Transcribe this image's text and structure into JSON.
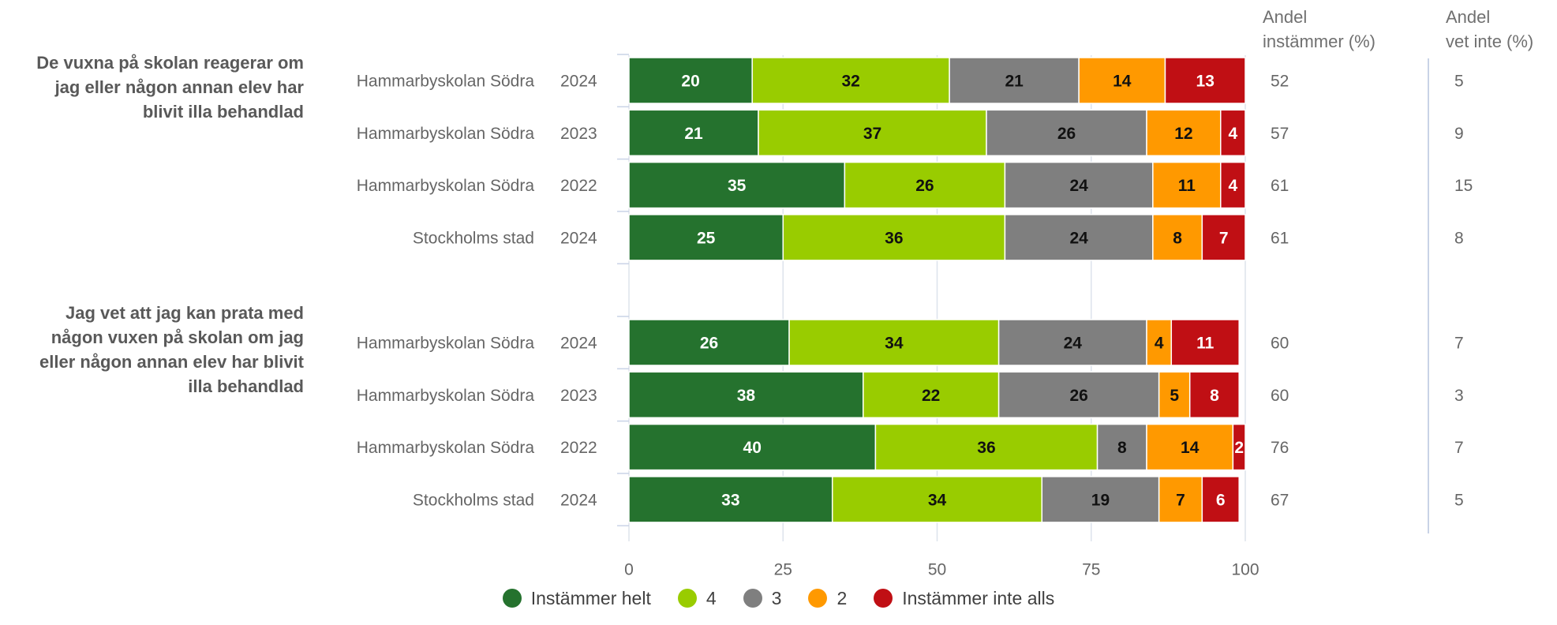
{
  "column_headers": {
    "agree": [
      "Andel",
      "instämmer (%)"
    ],
    "dont_know": [
      "Andel",
      "vet inte (%)"
    ]
  },
  "legend": [
    {
      "label": "Instämmer helt",
      "color": "#25722e"
    },
    {
      "label": "4",
      "color": "#99cc00"
    },
    {
      "label": "3",
      "color": "#7f7f7f"
    },
    {
      "label": "2",
      "color": "#ff9900"
    },
    {
      "label": "Instämmer inte alls",
      "color": "#c00f14"
    }
  ],
  "chart_data": {
    "type": "bar",
    "orientation": "horizontal",
    "stacked": true,
    "xlim": [
      0,
      100
    ],
    "x_ticks": [
      0,
      25,
      50,
      75,
      100
    ],
    "grid": true,
    "legend_position": "bottom",
    "series_names": [
      "Instämmer helt",
      "4",
      "3",
      "2",
      "Instämmer inte alls"
    ],
    "groups": [
      {
        "title": "De vuxna på skolan reagerar om jag eller någon annan elev har blivit illa behandlad",
        "rows": [
          {
            "label": "Hammarbyskolan Södra",
            "year": "2024",
            "values": [
              20,
              32,
              21,
              14,
              13
            ],
            "agree": 52,
            "dont_know": 5
          },
          {
            "label": "Hammarbyskolan Södra",
            "year": "2023",
            "values": [
              21,
              37,
              26,
              12,
              4
            ],
            "agree": 57,
            "dont_know": 9
          },
          {
            "label": "Hammarbyskolan Södra",
            "year": "2022",
            "values": [
              35,
              26,
              24,
              11,
              4
            ],
            "agree": 61,
            "dont_know": 15
          },
          {
            "label": "Stockholms stad",
            "year": "2024",
            "values": [
              25,
              36,
              24,
              8,
              7
            ],
            "agree": 61,
            "dont_know": 8
          }
        ]
      },
      {
        "title": "Jag vet att jag kan prata med någon vuxen på skolan om jag eller någon annan elev har blivit illa behandlad",
        "rows": [
          {
            "label": "Hammarbyskolan Södra",
            "year": "2024",
            "values": [
              26,
              34,
              24,
              4,
              11
            ],
            "agree": 60,
            "dont_know": 7
          },
          {
            "label": "Hammarbyskolan Södra",
            "year": "2023",
            "values": [
              38,
              22,
              26,
              5,
              8
            ],
            "agree": 60,
            "dont_know": 3
          },
          {
            "label": "Hammarbyskolan Södra",
            "year": "2022",
            "values": [
              40,
              36,
              8,
              14,
              2
            ],
            "agree": 76,
            "dont_know": 7
          },
          {
            "label": "Stockholms stad",
            "year": "2024",
            "values": [
              33,
              34,
              19,
              7,
              6
            ],
            "agree": 67,
            "dont_know": 5
          }
        ]
      }
    ]
  }
}
